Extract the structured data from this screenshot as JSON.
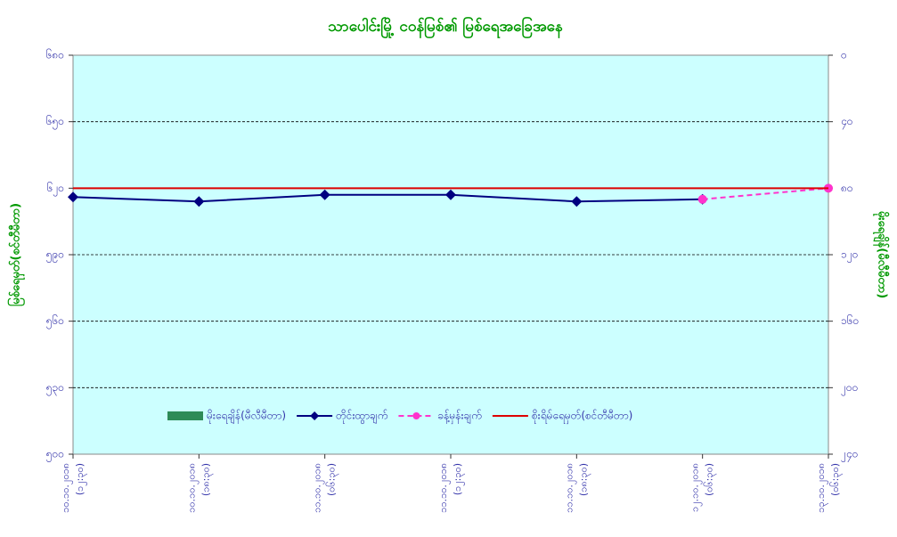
{
  "chart_data": {
    "type": "line",
    "title": "သာပေါင်းမြို့ ငဝန်မြစ်၏ မြစ်ရေအခြေအနေ",
    "y_label": "မြစ်ရေမှတ်(စင်တီမီတာ)",
    "y2_label": "မိုးရေချိန်(မီလီမီတာ)",
    "categories": [
      [
        "၁၀.၁၀.၂၀၁၈",
        "(၁၂:၃၀)"
      ],
      [
        "၁၀.၁၀.၂၀၁၈",
        "(၁၈:၃၀)"
      ],
      [
        "၁၁.၁၀.၂၀၁၈",
        "(၀၆:၃၀)"
      ],
      [
        "၁၁.၁၀.၂၀၁၈",
        "(၁၂:၃၀)"
      ],
      [
        "၁၁.၁၀.၂၀၁၈",
        "(၁၈:၃၀)"
      ],
      [
        "၁၂.၁၀.၂၀၁၈",
        "(၀၆:၃၀)"
      ],
      [
        "၁၃.၁၀.၂၀၁၈",
        "(၀၆:၃၀)"
      ]
    ],
    "series": [
      {
        "name": "မိုးရေချိန်(မီလီမီတာ)",
        "type": "bar",
        "axis": "y2",
        "color": "#2e8b57",
        "values": [
          0,
          0,
          0,
          0,
          0,
          0,
          0
        ]
      },
      {
        "name": "တိုင်းထွာချက်",
        "type": "line",
        "marker": "diamond",
        "color": "#000080",
        "values": [
          616,
          614,
          617,
          617,
          614,
          615,
          null
        ]
      },
      {
        "name": "ခန့်မှန်းချက်",
        "type": "line",
        "marker": "circle",
        "dashed": true,
        "color": "#ff33cc",
        "values": [
          null,
          null,
          null,
          null,
          null,
          615,
          620
        ]
      },
      {
        "name": "စိုးရိမ်ရေမှတ်(စင်တီမီတာ)",
        "type": "line",
        "color": "#dd0000",
        "values": [
          620,
          620,
          620,
          620,
          620,
          620,
          620
        ]
      }
    ],
    "ylim": [
      500,
      680
    ],
    "yticks": [
      {
        "value": 500,
        "label": "၅၀၀"
      },
      {
        "value": 530,
        "label": "၅၃၀"
      },
      {
        "value": 560,
        "label": "၅၆၀"
      },
      {
        "value": 590,
        "label": "၅၉၀"
      },
      {
        "value": 620,
        "label": "၆၂၀"
      },
      {
        "value": 650,
        "label": "၆၅၀"
      },
      {
        "value": 680,
        "label": "၆၈၀"
      }
    ],
    "y2lim": [
      0,
      240
    ],
    "y2_reversed": true,
    "y2ticks": [
      {
        "value": 0,
        "label": "၀"
      },
      {
        "value": 40,
        "label": "၄၀"
      },
      {
        "value": 80,
        "label": "၈၀"
      },
      {
        "value": 120,
        "label": "၁၂၀"
      },
      {
        "value": 160,
        "label": "၁၆၀"
      },
      {
        "value": 200,
        "label": "၂၀၀"
      },
      {
        "value": 240,
        "label": "၂၄၀"
      }
    ],
    "grid": true,
    "legend": "bottom"
  }
}
